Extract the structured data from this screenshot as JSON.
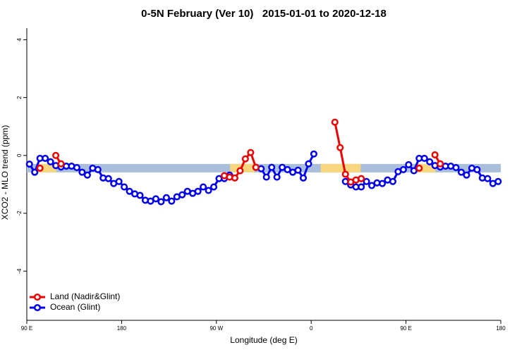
{
  "chart_data": {
    "type": "line",
    "title": "0-5N February (Ver 10)   2015-01-01 to 2020-12-18",
    "x_label": "Longitude (deg E)",
    "y_label": "XCO2 - MLO trend (ppm)",
    "xlim": [
      90,
      540
    ],
    "ylim": [
      -5.7,
      4.4
    ],
    "xticks": [
      {
        "value": 90,
        "label": "90 E"
      },
      180,
      {
        "value": 270,
        "label": "90 W"
      },
      {
        "value": 360,
        "label": "0"
      },
      {
        "value": 450,
        "label": "90 E"
      },
      {
        "value": 540,
        "label": "180"
      }
    ],
    "yticks": [
      -4,
      -2,
      0,
      2,
      4
    ],
    "legend": "bottomleft",
    "band": {
      "y": -0.44,
      "color": "#a9bfdc",
      "land_color": "#f9d77e",
      "land_ranges": [
        [
          101,
          118
        ],
        [
          283,
          306
        ],
        [
          369,
          407
        ],
        [
          461,
          478
        ]
      ]
    },
    "x": [
      92.5,
      97.5,
      102.5,
      107.5,
      112.5,
      117.5,
      122.5,
      127.5,
      132.5,
      137.5,
      142.5,
      147.5,
      152.5,
      157.5,
      162.5,
      167.5,
      172.5,
      177.5,
      182.5,
      187.5,
      192.5,
      197.5,
      202.5,
      207.5,
      212.5,
      217.5,
      222.5,
      227.5,
      232.5,
      237.5,
      242.5,
      247.5,
      252.5,
      257.5,
      262.5,
      267.5,
      272.5,
      277.5,
      282.5,
      287.5,
      292.5,
      297.5,
      302.5,
      307.5,
      312.5,
      317.5,
      322.5,
      327.5,
      332.5,
      337.5,
      342.5,
      347.5,
      352.5,
      357.5,
      362.5,
      367.5,
      372.5,
      377.5,
      382.5,
      387.5,
      392.5,
      397.5,
      402.5,
      407.5,
      412.5,
      417.5,
      422.5,
      427.5,
      432.5,
      437.5,
      442.5,
      447.5,
      452.5,
      457.5,
      462.5,
      467.5,
      472.5,
      477.5,
      482.5,
      487.5,
      492.5,
      497.5,
      502.5,
      507.5,
      512.5,
      517.5,
      522.5,
      527.5,
      532.5,
      537.5
    ],
    "series": [
      {
        "name": "Ocean (Glint)",
        "color": "#0000ee",
        "values": [
          -0.3,
          -0.58,
          -0.1,
          -0.1,
          -0.22,
          -0.35,
          -0.4,
          -0.37,
          -0.37,
          -0.42,
          -0.58,
          -0.68,
          -0.44,
          -0.49,
          -0.78,
          -0.8,
          -0.97,
          -0.9,
          -1.09,
          -1.24,
          -1.33,
          -1.38,
          -1.55,
          -1.58,
          -1.5,
          -1.6,
          -1.46,
          -1.58,
          -1.43,
          -1.36,
          -1.24,
          -1.31,
          -1.24,
          -1.09,
          -1.21,
          -1.09,
          -0.8,
          -0.8,
          -0.68,
          null,
          null,
          null,
          null,
          -0.41,
          -0.46,
          -0.75,
          -0.41,
          -0.75,
          -0.41,
          -0.49,
          -0.58,
          -0.51,
          -0.78,
          -0.29,
          0.05,
          null,
          null,
          null,
          null,
          null,
          -0.9,
          -1.02,
          -1.09,
          -1.09,
          -0.9,
          -1.04,
          -0.95,
          -0.97,
          -0.85,
          -0.9,
          -0.56,
          -0.49,
          -0.32,
          -0.53,
          -0.1,
          -0.1,
          -0.22,
          -0.35,
          -0.4,
          -0.37,
          -0.37,
          -0.42,
          -0.58,
          -0.68,
          -0.44,
          -0.49,
          -0.78,
          -0.8,
          -0.97,
          -0.9
        ]
      },
      {
        "name": "Land (Nadir&Glint)",
        "color": "#ee0000",
        "values": [
          null,
          null,
          -0.44,
          null,
          null,
          0.0,
          -0.29,
          null,
          null,
          null,
          null,
          null,
          null,
          null,
          null,
          null,
          null,
          null,
          null,
          null,
          null,
          null,
          null,
          null,
          null,
          null,
          null,
          null,
          null,
          null,
          null,
          null,
          null,
          null,
          null,
          null,
          null,
          -0.7,
          -0.75,
          -0.78,
          -0.53,
          -0.12,
          0.1,
          -0.41,
          null,
          null,
          null,
          null,
          null,
          null,
          null,
          null,
          null,
          null,
          null,
          null,
          null,
          null,
          1.15,
          0.27,
          -0.65,
          -0.92,
          -0.85,
          -0.8,
          null,
          null,
          null,
          null,
          null,
          null,
          null,
          null,
          null,
          null,
          -0.44,
          null,
          null,
          0.02,
          -0.29,
          null,
          null,
          null,
          null,
          null,
          null,
          null,
          null,
          null,
          null,
          null
        ]
      }
    ]
  }
}
